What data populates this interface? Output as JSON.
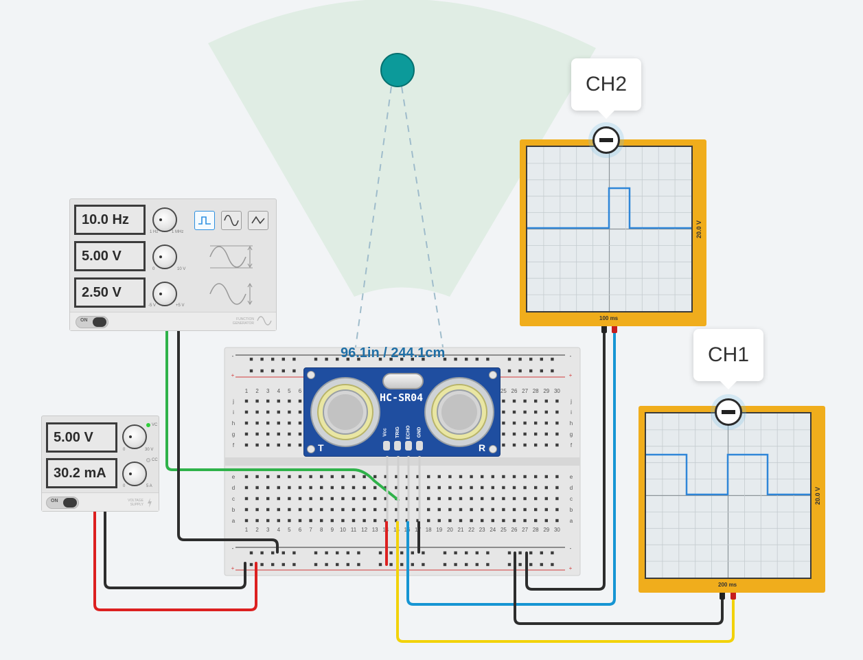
{
  "function_generator": {
    "frequency": "10.0 Hz",
    "amplitude": "5.00 V",
    "dc_offset": "2.50 V",
    "freq_min": "1 Hz",
    "freq_max": "1 MHz",
    "amp_min": "0",
    "amp_max": "10 V",
    "offset_min": "-5 V",
    "offset_max": "+5 V",
    "power_label": "ON",
    "brand": "FUNCTION GENERATOR",
    "waveforms": [
      "square-wave-icon",
      "sine-wave-icon",
      "triangle-wave-icon"
    ],
    "selected_waveform": "square"
  },
  "power_supply": {
    "voltage": "5.00 V",
    "current": "30.2 mA",
    "v_min": "0",
    "v_max": "30 V",
    "i_min": "0",
    "i_max": "5 A",
    "cv_label": "VC",
    "cc_label": "CC",
    "power_label": "ON",
    "brand": "VOLTAGE SUPPLY"
  },
  "sensor": {
    "model": "HC-SR04",
    "distance_readout": "96.1in / 244.1cm",
    "pins": [
      "Vcc",
      "TRIG",
      "ECHO",
      "GND"
    ],
    "t_label": "T",
    "r_label": "R"
  },
  "breadboard": {
    "columns": [
      "1",
      "2",
      "3",
      "4",
      "5",
      "6",
      "7",
      "8",
      "9",
      "10",
      "11",
      "12",
      "13",
      "14",
      "15",
      "16",
      "17",
      "18",
      "19",
      "20",
      "21",
      "22",
      "23",
      "24",
      "25",
      "26",
      "27",
      "28",
      "29",
      "30"
    ],
    "rows_top": [
      "j",
      "i",
      "h",
      "g",
      "f"
    ],
    "rows_bottom": [
      "e",
      "d",
      "c",
      "b",
      "a"
    ],
    "rail_minus": "-",
    "rail_plus": "+"
  },
  "oscilloscopes": [
    {
      "channel": "CH2",
      "volts_div": "20.0 V",
      "time_div": "100 ms"
    },
    {
      "channel": "CH1",
      "volts_div": "20.0 V",
      "time_div": "200 ms"
    }
  ],
  "colors": {
    "wire_green": "#2fb24a",
    "wire_black": "#2d2d2d",
    "wire_red": "#dc2020",
    "wire_yellow": "#f2d20a",
    "wire_blue": "#1695d3",
    "scope_frame": "#f0ad1c",
    "trace": "#2f86d8",
    "object": "#0c9a9a",
    "sensor_board": "#1f4ea0"
  }
}
